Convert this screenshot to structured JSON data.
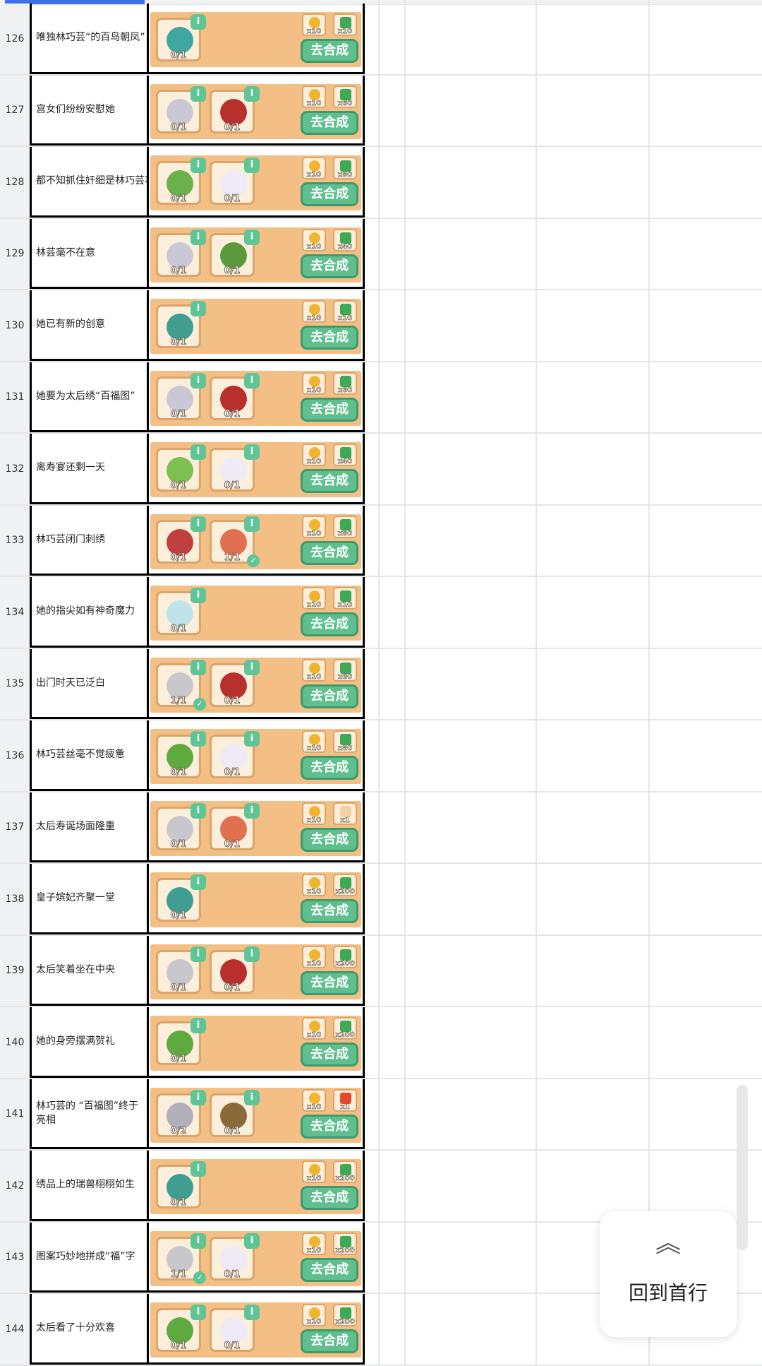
{
  "button_label": "去合成",
  "back_to_top": "回到首行",
  "rows": [
    {
      "num": "126",
      "text": "唯独林巧芸“的百鸟朝凤”",
      "items": [
        {
          "icon": "teal-toolbox",
          "count": "0/1"
        }
      ],
      "rewards": [
        "x10",
        "x10"
      ]
    },
    {
      "num": "127",
      "text": "宫女们纷纷安慰她",
      "items": [
        {
          "icon": "scissors",
          "count": "0/1"
        },
        {
          "icon": "red-gloves",
          "count": "0/1"
        }
      ],
      "rewards": [
        "x10",
        "x60"
      ]
    },
    {
      "num": "128",
      "text": "都不知抓住奸细是林巧芸功",
      "items": [
        {
          "icon": "potted-plant",
          "count": "0/1"
        },
        {
          "icon": "white-flowers",
          "count": "0/1"
        }
      ],
      "rewards": [
        "x10",
        "x80"
      ]
    },
    {
      "num": "129",
      "text": "林芸毫不在意",
      "items": [
        {
          "icon": "scissors",
          "count": "0/1"
        },
        {
          "icon": "berry-bush",
          "count": "0/1"
        }
      ],
      "rewards": [
        "x10",
        "x40"
      ]
    },
    {
      "num": "130",
      "text": "她已有新的创意",
      "items": [
        {
          "icon": "teal-ribbon",
          "count": "0/1"
        }
      ],
      "rewards": [
        "x10",
        "x10"
      ]
    },
    {
      "num": "131",
      "text": "她要为太后绣“百福图”",
      "items": [
        {
          "icon": "scissors",
          "count": "0/1"
        },
        {
          "icon": "red-gloves",
          "count": "0/1"
        }
      ],
      "rewards": [
        "x10",
        "x60"
      ]
    },
    {
      "num": "132",
      "text": "离寿宴还剩一天",
      "items": [
        {
          "icon": "sprout-pot",
          "count": "0/1"
        },
        {
          "icon": "white-flowers",
          "count": "0/1"
        }
      ],
      "rewards": [
        "x10",
        "x40"
      ]
    },
    {
      "num": "133",
      "text": "林巧芸闭门刺绣",
      "items": [
        {
          "icon": "trowel",
          "count": "0/1"
        },
        {
          "icon": "flower-basket",
          "count": "1/1",
          "done": true
        }
      ],
      "rewards": [
        "x10",
        "x80"
      ]
    },
    {
      "num": "134",
      "text": "她的指尖如有神奇魔力",
      "items": [
        {
          "icon": "vase",
          "count": "0/1"
        }
      ],
      "rewards": [
        "x10",
        "x10"
      ]
    },
    {
      "num": "135",
      "text": "出门时天已泛白",
      "items": [
        {
          "icon": "rake",
          "count": "1/1",
          "done": true
        },
        {
          "icon": "red-gloves",
          "count": "0/1"
        }
      ],
      "rewards": [
        "x10",
        "x60"
      ]
    },
    {
      "num": "136",
      "text": "林巧芸丝毫不觉疲惫",
      "items": [
        {
          "icon": "fruit-tree",
          "count": "0/1"
        },
        {
          "icon": "white-flowers",
          "count": "0/1"
        }
      ],
      "rewards": [
        "x10",
        "x80"
      ]
    },
    {
      "num": "137",
      "text": "太后寿诞场面隆重",
      "items": [
        {
          "icon": "rake",
          "count": "0/1"
        },
        {
          "icon": "flower-basket",
          "count": "0/1"
        }
      ],
      "rewards": [
        "x10",
        "x1"
      ]
    },
    {
      "num": "138",
      "text": "皇子嫔妃齐聚一堂",
      "items": [
        {
          "icon": "teal-ribbon",
          "count": "0/1"
        }
      ],
      "rewards": [
        "x10",
        "x200"
      ]
    },
    {
      "num": "139",
      "text": "太后笑着坐在中央",
      "items": [
        {
          "icon": "rake",
          "count": "0/1"
        },
        {
          "icon": "red-gloves",
          "count": "0/1"
        }
      ],
      "rewards": [
        "x10",
        "x200"
      ]
    },
    {
      "num": "140",
      "text": "她的身旁摆满贺礼",
      "items": [
        {
          "icon": "fruit-tree",
          "count": "0/1"
        }
      ],
      "rewards": [
        "x10",
        "x200"
      ]
    },
    {
      "num": "141",
      "text": "林巧芸的 “百福图”终于亮相",
      "items": [
        {
          "icon": "hand-rake",
          "count": "0/2"
        },
        {
          "icon": "seedling",
          "count": "0/1"
        }
      ],
      "rewards": [
        "x10",
        "x1"
      ]
    },
    {
      "num": "142",
      "text": "绣品上的瑞兽栩栩如生",
      "items": [
        {
          "icon": "teal-ribbon",
          "count": "0/1"
        }
      ],
      "rewards": [
        "x10",
        "x200"
      ]
    },
    {
      "num": "143",
      "text": "图案巧妙地拼成“福”字",
      "items": [
        {
          "icon": "rake",
          "count": "1/1",
          "done": true
        },
        {
          "icon": "white-flowers",
          "count": "0/1"
        }
      ],
      "rewards": [
        "x10",
        "x200"
      ]
    },
    {
      "num": "144",
      "text": "太后看了十分欢喜",
      "items": [
        {
          "icon": "fruit-tree",
          "count": "0/1"
        },
        {
          "icon": "white-flowers",
          "count": "0/1"
        }
      ],
      "rewards": [
        "x10",
        "x200"
      ]
    }
  ],
  "colors": {
    "card": "#f4bf84",
    "button": "#5fbf8e",
    "teal-toolbox": "#3fa6a0",
    "scissors": "#c9c9d6",
    "red-gloves": "#b8302c",
    "potted-plant": "#6bb04a",
    "white-flowers": "#eeeaf6",
    "berry-bush": "#5a9a3a",
    "teal-ribbon": "#3f9e90",
    "sprout-pot": "#7cc050",
    "trowel": "#c04040",
    "flower-basket": "#e07050",
    "vase": "#bfe3ea",
    "rake": "#c8c8cc",
    "fruit-tree": "#5eaa3e",
    "hand-rake": "#b0b0b8",
    "seedling": "#8a6a3a"
  }
}
